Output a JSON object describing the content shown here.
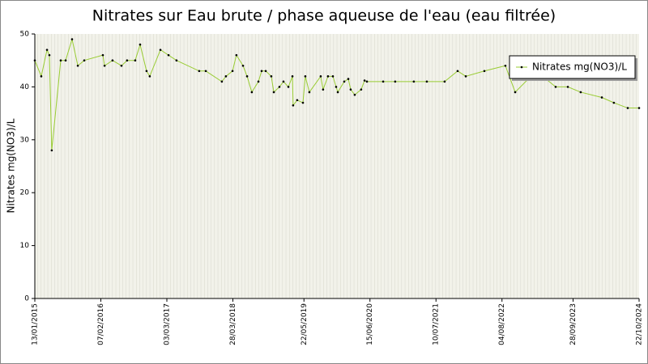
{
  "chart_data": {
    "type": "line",
    "title": "Nitrates sur Eau brute / phase aqueuse de l'eau (eau filtrée)",
    "y_label": "Nitrates mg(NO3)/L",
    "x": [
      "2015-01-13",
      "2015-02-20",
      "2015-03-26",
      "2015-04-09",
      "2015-04-23",
      "2015-06-15",
      "2015-07-14",
      "2015-08-21",
      "2015-09-24",
      "2015-11-01",
      "2016-02-19",
      "2016-02-29",
      "2016-04-16",
      "2016-06-08",
      "2016-07-11",
      "2016-08-28",
      "2016-09-26",
      "2016-11-03",
      "2016-11-22",
      "2017-01-24",
      "2017-03-13",
      "2017-04-29",
      "2017-09-10",
      "2017-10-19",
      "2018-01-22",
      "2018-02-15",
      "2018-03-26",
      "2018-04-18",
      "2018-05-27",
      "2018-06-20",
      "2018-07-18",
      "2018-08-26",
      "2018-09-14",
      "2018-10-08",
      "2018-11-10",
      "2018-11-25",
      "2018-12-28",
      "2019-01-21",
      "2019-02-19",
      "2019-03-15",
      "2019-03-19",
      "2019-04-12",
      "2019-05-16",
      "2019-05-30",
      "2019-06-23",
      "2019-08-29",
      "2019-09-12",
      "2019-10-11",
      "2019-11-09",
      "2019-11-28",
      "2019-12-08",
      "2020-01-15",
      "2020-02-08",
      "2020-02-22",
      "2020-03-17",
      "2020-04-24",
      "2020-05-14",
      "2020-05-28",
      "2020-09-01",
      "2020-11-11",
      "2021-03-01",
      "2021-05-17",
      "2021-08-30",
      "2021-11-15",
      "2022-01-02",
      "2022-04-22",
      "2022-08-24",
      "2022-10-21",
      "2023-02-22",
      "2023-06-17",
      "2023-08-28",
      "2023-11-12",
      "2024-03-16",
      "2024-05-26",
      "2024-08-16",
      "2024-10-22"
    ],
    "series": [
      {
        "name": "Nitrates mg(NO3)/L",
        "color": "#99cc33",
        "marker_color": "#000000",
        "values": [
          45,
          42,
          47,
          46,
          28,
          45,
          45,
          49,
          44,
          45,
          46,
          44,
          45,
          44,
          45,
          45,
          48,
          43,
          42,
          47,
          46,
          45,
          43,
          43,
          41,
          42,
          43,
          46,
          44,
          42,
          39,
          41,
          43,
          43,
          42,
          39,
          40,
          41,
          40,
          42,
          36.5,
          37.5,
          37,
          42,
          39,
          42,
          39.5,
          42,
          42,
          40,
          39,
          41,
          41.5,
          39.5,
          38.5,
          39.5,
          41.2,
          41,
          41,
          41,
          41,
          41,
          41,
          43,
          42,
          43,
          44,
          39,
          43,
          40,
          40,
          39,
          38,
          37,
          36,
          36
        ]
      }
    ],
    "xlim": [
      "2015-01-13",
      "2024-10-22"
    ],
    "xticks": [
      {
        "value": "2015-01-13",
        "label": "13/01/2015"
      },
      {
        "value": "2016-02-07",
        "label": "07/02/2016"
      },
      {
        "value": "2017-03-03",
        "label": "03/03/2017"
      },
      {
        "value": "2018-03-28",
        "label": "28/03/2018"
      },
      {
        "value": "2019-05-22",
        "label": "22/05/2019"
      },
      {
        "value": "2020-06-15",
        "label": "15/06/2020"
      },
      {
        "value": "2021-07-10",
        "label": "10/07/2021"
      },
      {
        "value": "2022-08-04",
        "label": "04/08/2022"
      },
      {
        "value": "2023-09-28",
        "label": "28/09/2023"
      },
      {
        "value": "2024-10-22",
        "label": "22/10/2024"
      }
    ],
    "ylim": [
      0,
      50
    ],
    "yticks": [
      0,
      10,
      20,
      30,
      40,
      50
    ],
    "legend": "top-right"
  }
}
